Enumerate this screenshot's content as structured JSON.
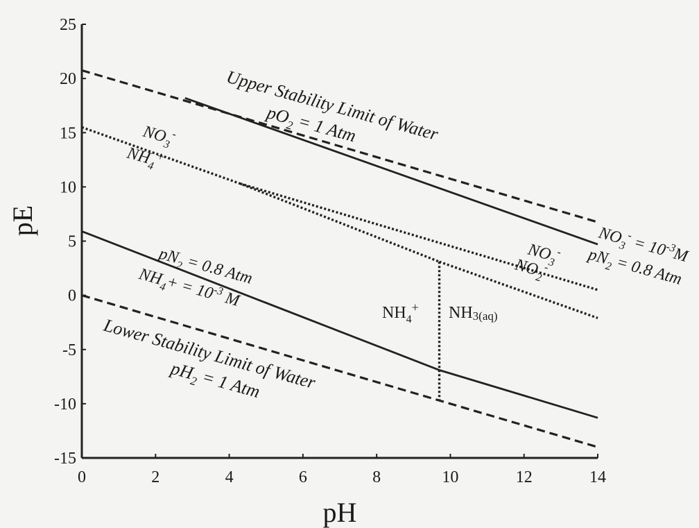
{
  "chart_data": {
    "type": "line",
    "xlabel": "pH",
    "ylabel": "pE",
    "xlim": [
      0,
      14
    ],
    "ylim": [
      -15,
      25
    ],
    "x_ticks": [
      "0",
      "2",
      "4",
      "6",
      "8",
      "10",
      "12",
      "14"
    ],
    "y_ticks": [
      "25",
      "20",
      "15",
      "10",
      "5",
      "0",
      "-5",
      "-10",
      "-15"
    ],
    "grid": false,
    "colors": {
      "line": "#222222",
      "background": "#f4f4f2"
    },
    "series": [
      {
        "key": "water_upper",
        "style": "dashed",
        "x": [
          0,
          14
        ],
        "y": [
          20.75,
          6.75
        ]
      },
      {
        "key": "water_lower",
        "style": "dashed",
        "x": [
          0,
          14
        ],
        "y": [
          0,
          -14
        ]
      },
      {
        "key": "no3_n2",
        "style": "solid",
        "x": [
          2.8,
          14
        ],
        "y": [
          18.2,
          4.7
        ]
      },
      {
        "key": "n2_nh4",
        "style": "solid",
        "x": [
          0,
          9.7,
          14
        ],
        "y": [
          5.9,
          -6.9,
          -11.3
        ]
      },
      {
        "key": "no3_nh4",
        "style": "dotted",
        "x": [
          0,
          4.3,
          9.7
        ],
        "y": [
          15.5,
          10.3,
          3.1
        ]
      },
      {
        "key": "no3_no2",
        "style": "dotted",
        "x": [
          4.3,
          14
        ],
        "y": [
          10.3,
          0.5
        ]
      },
      {
        "key": "no2_nh3",
        "style": "dotted",
        "x": [
          9.7,
          14
        ],
        "y": [
          3.1,
          -2.1
        ]
      },
      {
        "key": "nh4_nh3",
        "style": "dotted",
        "x": [
          9.7,
          9.7
        ],
        "y": [
          3.1,
          -9.7
        ]
      }
    ],
    "annotations": {
      "upper_water": {
        "line1": "Upper Stability Limit of Water",
        "line2_prefix": "pO",
        "line2_sub": "2",
        "line2_suffix": " = 1 Atm"
      },
      "lower_water": {
        "line1": "Lower Stability Limit of Water",
        "line2_prefix": "pH",
        "line2_sub": "2",
        "line2_suffix": " = 1 Atm"
      },
      "no3_nh4_left": {
        "top_main": "NO",
        "top_sub": "3",
        "top_sup": "-",
        "bottom_main": "NH",
        "bottom_sub": "4",
        "bottom_sup": "+"
      },
      "pn2_left": {
        "line1_prefix": "pN",
        "line1_sub": "2",
        "line1_suffix": " = 0.8 Atm",
        "line2_main": "NH",
        "line2_sub": "4",
        "line2_mid": "+ = 10",
        "line2_sup": "-3",
        "line2_suffix": " M"
      },
      "right_cond": {
        "line1_main": "NO",
        "line1_sub": "3",
        "line1_sup": "-",
        "line1_mid": " = 10",
        "line1_sup2": "-3",
        "line1_suffix": "M",
        "line2_prefix": "pN",
        "line2_sub": "2",
        "line2_suffix": " = 0.8 Atm"
      },
      "no3_no2_right": {
        "top_main": "NO",
        "top_sub": "3",
        "top_sup": "-",
        "bottom_main": "NO",
        "bottom_sub": "2",
        "bottom_sup": "-"
      },
      "nh4_label": {
        "main": "NH",
        "sub": "4",
        "sup": "+"
      },
      "nh3_label": {
        "main": "NH",
        "sub": "3(aq)"
      }
    }
  }
}
